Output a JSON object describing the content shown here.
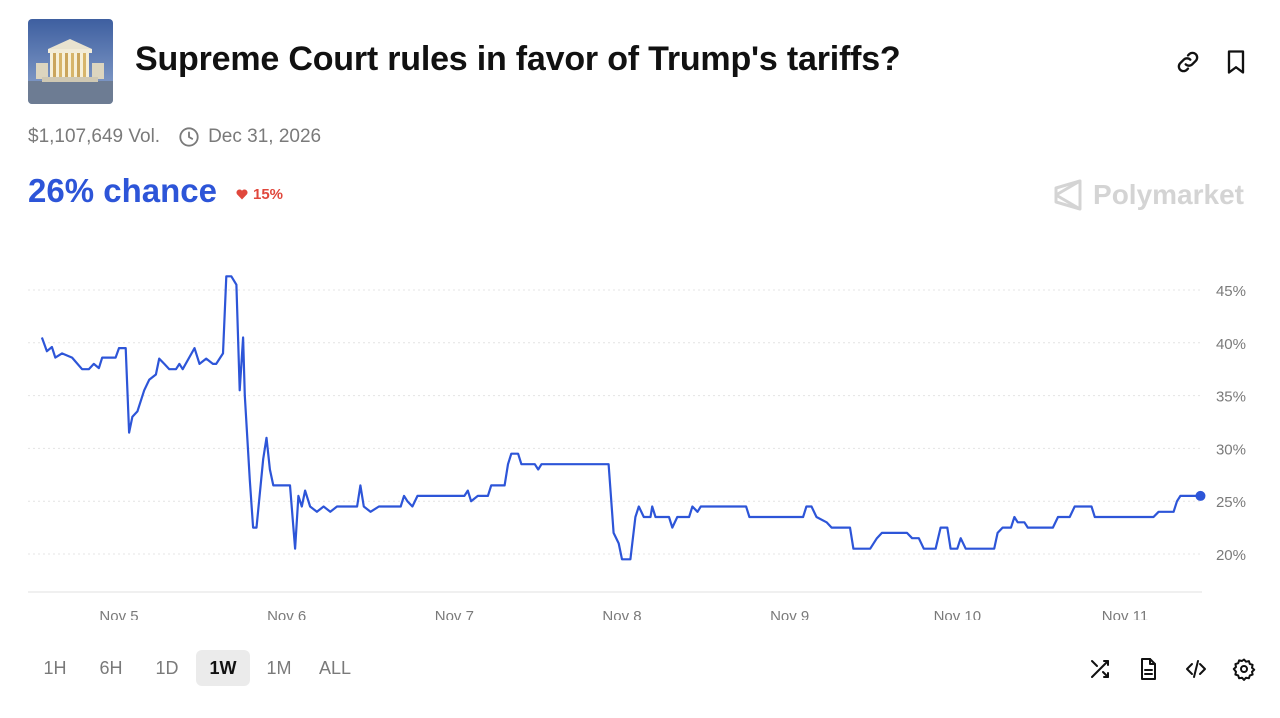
{
  "header": {
    "title": "Supreme Court rules in favor of Trump's tariffs?",
    "thumbnail_icon": "supreme-court-building-image",
    "link_icon": "link-icon",
    "bookmark_icon": "bookmark-icon"
  },
  "meta": {
    "volume": "$1,107,649 Vol.",
    "end_date": "Dec 31, 2026"
  },
  "summary": {
    "chance": "26% chance",
    "change": "15%",
    "change_direction": "down",
    "change_color": "#e0473c",
    "accent_color": "#2d55d8"
  },
  "brand": {
    "name": "Polymarket"
  },
  "range_buttons": [
    "1H",
    "6H",
    "1D",
    "1W",
    "1M",
    "ALL"
  ],
  "selected_range": "1W",
  "tools": [
    "shuffle-icon",
    "document-icon",
    "embed-code-icon",
    "settings-icon"
  ],
  "chart_data": {
    "type": "line",
    "series": [
      {
        "color": "#2d55d8",
        "points": [
          [
            4.54,
            40.5
          ],
          [
            4.57,
            39.2
          ],
          [
            4.6,
            39.6
          ],
          [
            4.62,
            38.6
          ],
          [
            4.66,
            39.0
          ],
          [
            4.72,
            38.6
          ],
          [
            4.78,
            37.5
          ],
          [
            4.82,
            37.5
          ],
          [
            4.85,
            38.0
          ],
          [
            4.88,
            37.6
          ],
          [
            4.9,
            38.6
          ],
          [
            4.95,
            38.6
          ],
          [
            4.98,
            38.6
          ],
          [
            5.0,
            39.5
          ],
          [
            5.04,
            39.5
          ],
          [
            5.06,
            31.5
          ],
          [
            5.08,
            33.0
          ],
          [
            5.11,
            33.5
          ],
          [
            5.15,
            35.5
          ],
          [
            5.18,
            36.5
          ],
          [
            5.22,
            37.0
          ],
          [
            5.24,
            38.5
          ],
          [
            5.27,
            38.0
          ],
          [
            5.3,
            37.5
          ],
          [
            5.34,
            37.5
          ],
          [
            5.36,
            38.0
          ],
          [
            5.38,
            37.5
          ],
          [
            5.45,
            39.5
          ],
          [
            5.48,
            38.0
          ],
          [
            5.52,
            38.5
          ],
          [
            5.56,
            38.0
          ],
          [
            5.58,
            38.0
          ],
          [
            5.62,
            39.0
          ],
          [
            5.64,
            46.3
          ],
          [
            5.67,
            46.3
          ],
          [
            5.7,
            45.5
          ],
          [
            5.72,
            35.5
          ],
          [
            5.74,
            40.5
          ],
          [
            5.75,
            35.0
          ],
          [
            5.78,
            27.0
          ],
          [
            5.8,
            22.5
          ],
          [
            5.82,
            22.5
          ],
          [
            5.86,
            29.0
          ],
          [
            5.88,
            31.0
          ],
          [
            5.9,
            28.0
          ],
          [
            5.92,
            26.5
          ],
          [
            5.96,
            26.5
          ],
          [
            6.0,
            26.5
          ],
          [
            6.02,
            26.5
          ],
          [
            6.05,
            20.5
          ],
          [
            6.07,
            25.5
          ],
          [
            6.09,
            24.5
          ],
          [
            6.11,
            26.0
          ],
          [
            6.14,
            24.5
          ],
          [
            6.18,
            24.0
          ],
          [
            6.22,
            24.5
          ],
          [
            6.26,
            24.0
          ],
          [
            6.3,
            24.5
          ],
          [
            6.42,
            24.5
          ],
          [
            6.44,
            26.5
          ],
          [
            6.46,
            24.5
          ],
          [
            6.5,
            24.0
          ],
          [
            6.55,
            24.5
          ],
          [
            6.68,
            24.5
          ],
          [
            6.7,
            25.5
          ],
          [
            6.72,
            25.0
          ],
          [
            6.75,
            24.5
          ],
          [
            6.78,
            25.5
          ],
          [
            6.83,
            25.5
          ],
          [
            7.06,
            25.5
          ],
          [
            7.08,
            26.0
          ],
          [
            7.1,
            25.0
          ],
          [
            7.14,
            25.5
          ],
          [
            7.2,
            25.5
          ],
          [
            7.22,
            26.5
          ],
          [
            7.3,
            26.5
          ],
          [
            7.32,
            28.5
          ],
          [
            7.34,
            29.5
          ],
          [
            7.38,
            29.5
          ],
          [
            7.4,
            28.5
          ],
          [
            7.48,
            28.5
          ],
          [
            7.5,
            28.0
          ],
          [
            7.52,
            28.5
          ],
          [
            7.92,
            28.5
          ],
          [
            7.95,
            22.0
          ],
          [
            7.98,
            21.0
          ],
          [
            8.0,
            19.5
          ],
          [
            8.05,
            19.5
          ],
          [
            8.08,
            23.5
          ],
          [
            8.1,
            24.5
          ],
          [
            8.13,
            23.5
          ],
          [
            8.17,
            23.5
          ],
          [
            8.18,
            24.5
          ],
          [
            8.2,
            23.5
          ],
          [
            8.28,
            23.5
          ],
          [
            8.3,
            22.5
          ],
          [
            8.33,
            23.5
          ],
          [
            8.4,
            23.5
          ],
          [
            8.42,
            24.5
          ],
          [
            8.45,
            24.0
          ],
          [
            8.47,
            24.5
          ],
          [
            8.74,
            24.5
          ],
          [
            8.76,
            23.5
          ],
          [
            9.08,
            23.5
          ],
          [
            9.1,
            24.5
          ],
          [
            9.13,
            24.5
          ],
          [
            9.16,
            23.5
          ],
          [
            9.22,
            23.0
          ],
          [
            9.25,
            22.5
          ],
          [
            9.36,
            22.5
          ],
          [
            9.38,
            20.5
          ],
          [
            9.48,
            20.5
          ],
          [
            9.52,
            21.5
          ],
          [
            9.55,
            22.0
          ],
          [
            9.7,
            22.0
          ],
          [
            9.73,
            21.5
          ],
          [
            9.77,
            21.5
          ],
          [
            9.8,
            20.5
          ],
          [
            9.87,
            20.5
          ],
          [
            9.9,
            22.5
          ],
          [
            9.94,
            22.5
          ],
          [
            9.96,
            20.5
          ],
          [
            10.0,
            20.5
          ],
          [
            10.02,
            21.5
          ],
          [
            10.05,
            20.5
          ],
          [
            10.22,
            20.5
          ],
          [
            10.24,
            22.0
          ],
          [
            10.27,
            22.5
          ],
          [
            10.32,
            22.5
          ],
          [
            10.34,
            23.5
          ],
          [
            10.36,
            23.0
          ],
          [
            10.4,
            23.0
          ],
          [
            10.42,
            22.5
          ],
          [
            10.47,
            22.5
          ],
          [
            10.57,
            22.5
          ],
          [
            10.6,
            23.5
          ],
          [
            10.67,
            23.5
          ],
          [
            10.7,
            24.5
          ],
          [
            10.8,
            24.5
          ],
          [
            10.82,
            23.5
          ],
          [
            10.9,
            23.5
          ],
          [
            11.17,
            23.5
          ],
          [
            11.2,
            24.0
          ],
          [
            11.29,
            24.0
          ],
          [
            11.31,
            25.0
          ],
          [
            11.33,
            25.5
          ],
          [
            11.45,
            25.5
          ]
        ]
      }
    ],
    "x_ticks": [
      "Nov 5",
      "Nov 6",
      "Nov 7",
      "Nov 8",
      "Nov 9",
      "Nov 10",
      "Nov 11"
    ],
    "xlim": [
      4.54,
      11.45
    ],
    "y_ticks": [
      "45%",
      "40%",
      "35%",
      "30%",
      "25%",
      "20%"
    ],
    "ylim": [
      18,
      48
    ],
    "grid": "horizontal-dotted",
    "last_point_marker": true
  }
}
